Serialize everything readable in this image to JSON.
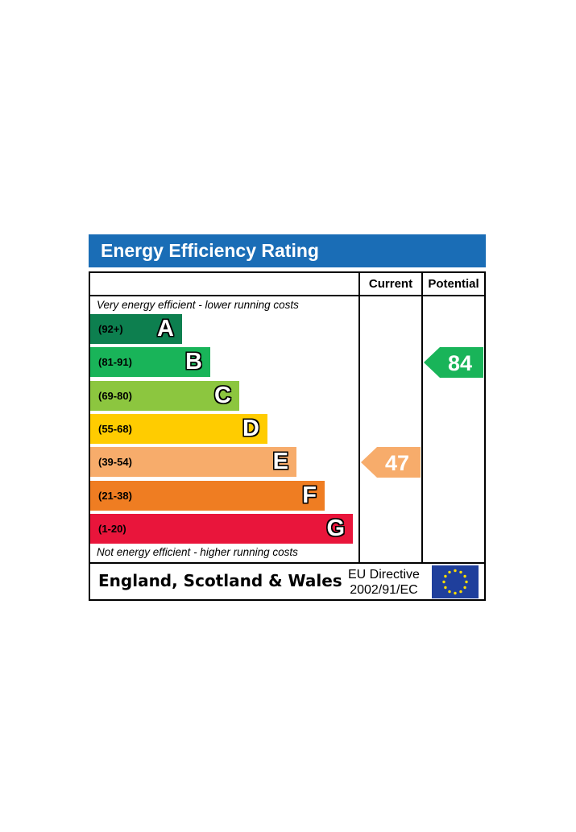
{
  "title": "Energy Efficiency Rating",
  "columns": {
    "current": "Current",
    "potential": "Potential"
  },
  "notes": {
    "top": "Very energy efficient - lower running costs",
    "bottom": "Not energy efficient - higher running costs"
  },
  "footer": {
    "region": "England, Scotland & Wales",
    "directive_line1": "EU Directive",
    "directive_line2": "2002/91/EC"
  },
  "chart_data": {
    "type": "bar",
    "title": "Energy Efficiency Rating",
    "categories": [
      "A",
      "B",
      "C",
      "D",
      "E",
      "F",
      "G"
    ],
    "ranges": [
      "(92+)",
      "(81-91)",
      "(69-80)",
      "(55-68)",
      "(39-54)",
      "(21-38)",
      "(1-20)"
    ],
    "colors": [
      "#0d7f4f",
      "#19b459",
      "#8cc63f",
      "#ffcc00",
      "#f7ac6b",
      "#ef7d22",
      "#e9153b"
    ],
    "current": {
      "label": "Current",
      "value": 47,
      "band": "E",
      "color": "#f7ac6b"
    },
    "potential": {
      "label": "Potential",
      "value": 84,
      "band": "B",
      "color": "#19b459"
    }
  }
}
